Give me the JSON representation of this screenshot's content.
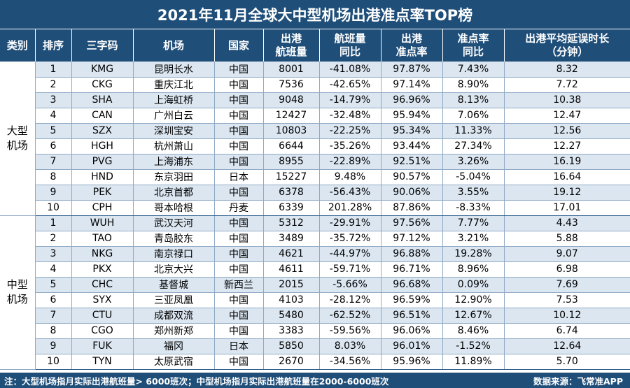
{
  "title": "2021年11月全球大中型机场出港准点率TOP榜",
  "columns": [
    [
      "类别"
    ],
    [
      "排序"
    ],
    [
      "三字码"
    ],
    [
      "机场"
    ],
    [
      "国家"
    ],
    [
      "出港",
      "航班量"
    ],
    [
      "航班量",
      "同比"
    ],
    [
      "出港",
      "准点率"
    ],
    [
      "准点率",
      "同比"
    ],
    [
      "出港平均延误时长",
      "（分钟）"
    ]
  ],
  "groups": [
    {
      "category": [
        "大型",
        "机场"
      ],
      "rows": [
        [
          "1",
          "KMG",
          "昆明长水",
          "中国",
          "8001",
          "-41.08%",
          "97.87%",
          "7.43%",
          "8.32"
        ],
        [
          "2",
          "CKG",
          "重庆江北",
          "中国",
          "7536",
          "-42.65%",
          "97.14%",
          "8.90%",
          "7.72"
        ],
        [
          "3",
          "SHA",
          "上海虹桥",
          "中国",
          "9048",
          "-14.79%",
          "96.96%",
          "8.13%",
          "10.38"
        ],
        [
          "4",
          "CAN",
          "广州白云",
          "中国",
          "12427",
          "-32.48%",
          "95.94%",
          "7.06%",
          "12.47"
        ],
        [
          "5",
          "SZX",
          "深圳宝安",
          "中国",
          "10803",
          "-22.25%",
          "95.34%",
          "11.33%",
          "12.56"
        ],
        [
          "6",
          "HGH",
          "杭州萧山",
          "中国",
          "6644",
          "-35.26%",
          "93.44%",
          "27.34%",
          "12.27"
        ],
        [
          "7",
          "PVG",
          "上海浦东",
          "中国",
          "8955",
          "-22.89%",
          "92.51%",
          "3.26%",
          "16.19"
        ],
        [
          "8",
          "HND",
          "东京羽田",
          "日本",
          "15227",
          "9.48%",
          "90.57%",
          "-5.04%",
          "16.64"
        ],
        [
          "9",
          "PEK",
          "北京首都",
          "中国",
          "6378",
          "-56.43%",
          "90.06%",
          "3.55%",
          "19.12"
        ],
        [
          "10",
          "CPH",
          "哥本哈根",
          "丹麦",
          "6339",
          "201.28%",
          "87.86%",
          "-8.33%",
          "17.01"
        ]
      ]
    },
    {
      "category": [
        "中型",
        "机场"
      ],
      "rows": [
        [
          "1",
          "WUH",
          "武汉天河",
          "中国",
          "5312",
          "-29.91%",
          "97.56%",
          "7.77%",
          "4.43"
        ],
        [
          "2",
          "TAO",
          "青岛胶东",
          "中国",
          "3489",
          "-35.72%",
          "97.12%",
          "3.21%",
          "5.88"
        ],
        [
          "3",
          "NKG",
          "南京禄口",
          "中国",
          "4621",
          "-44.97%",
          "96.88%",
          "19.28%",
          "9.07"
        ],
        [
          "4",
          "PKX",
          "北京大兴",
          "中国",
          "4611",
          "-59.71%",
          "96.71%",
          "8.96%",
          "6.98"
        ],
        [
          "5",
          "CHC",
          "基督城",
          "新西兰",
          "2015",
          "-5.66%",
          "96.68%",
          "0.09%",
          "7.69"
        ],
        [
          "6",
          "SYX",
          "三亚凤凰",
          "中国",
          "4103",
          "-28.12%",
          "96.59%",
          "12.90%",
          "7.53"
        ],
        [
          "7",
          "CTU",
          "成都双流",
          "中国",
          "5480",
          "-62.52%",
          "96.51%",
          "12.67%",
          "10.12"
        ],
        [
          "8",
          "CGO",
          "郑州新郑",
          "中国",
          "3383",
          "-59.56%",
          "96.06%",
          "8.46%",
          "6.74"
        ],
        [
          "9",
          "FUK",
          "福冈",
          "日本",
          "5850",
          "8.03%",
          "96.01%",
          "-1.52%",
          "12.64"
        ],
        [
          "10",
          "TYN",
          "太原武宿",
          "中国",
          "2670",
          "-34.56%",
          "95.96%",
          "11.89%",
          "5.70"
        ]
      ]
    }
  ],
  "footer": {
    "note": "注：大型机场指月实际出港航班量> 6000班次；中型机场指月实际出港航班量在2000-6000班次",
    "source": "数据来源：飞常准APP"
  }
}
